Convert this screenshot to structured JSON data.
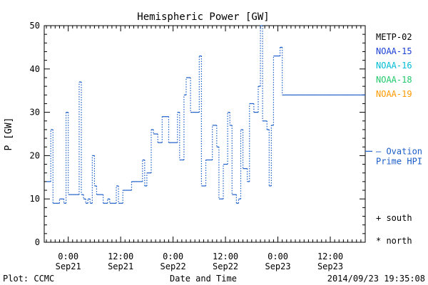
{
  "chart_data": {
    "type": "line",
    "title": "Hemispheric Power [GW]",
    "xlabel": "Date and Time",
    "ylabel": "P [GW]",
    "ylim": [
      0,
      50
    ],
    "yticks": [
      0,
      10,
      20,
      30,
      40,
      50
    ],
    "xticks": [
      {
        "time": "0:00",
        "date": "Sep21"
      },
      {
        "time": "12:00",
        "date": "Sep21"
      },
      {
        "time": "0:00",
        "date": "Sep22"
      },
      {
        "time": "12:00",
        "date": "Sep22"
      },
      {
        "time": "0:00",
        "date": "Sep23"
      },
      {
        "time": "12:00",
        "date": "Sep23"
      }
    ],
    "grid": false,
    "legend_position": "right",
    "legend": [
      {
        "name": "METP-02",
        "color": "#000000"
      },
      {
        "name": "NOAA-15",
        "color": "#1a3fd6"
      },
      {
        "name": "NOAA-16",
        "color": "#00bcd4"
      },
      {
        "name": "NOAA-18",
        "color": "#22c96a"
      },
      {
        "name": "NOAA-19",
        "color": "#ff9900"
      }
    ],
    "ovation_label": [
      "— Ovation",
      "Prime HPI"
    ],
    "ovation_color": "#1a5cc8",
    "marker_legend": [
      "+ south",
      "* north"
    ],
    "series": [
      {
        "name": "Ovation Prime HPI",
        "color": "#1a5cc8",
        "x_hours_from_sep21_0000": [
          -5,
          -4,
          -3.5,
          -3,
          -2,
          -1,
          -0.5,
          0,
          0.5,
          1,
          1.5,
          2,
          2.5,
          3,
          3.5,
          4,
          4.5,
          5,
          5.5,
          6,
          6.5,
          7,
          7.5,
          8,
          8.5,
          9,
          9.5,
          10,
          10.5,
          11,
          11.5,
          12,
          12.5,
          13,
          13.5,
          14,
          14.5,
          15,
          15.5,
          16,
          16.5,
          17,
          17.5,
          18,
          18.5,
          19,
          19.5,
          20,
          20.5,
          21,
          21.5,
          22,
          22.5,
          23,
          23.5,
          24,
          24.5,
          25,
          25.5,
          26,
          26.5,
          27,
          27.5,
          28,
          28.5,
          29,
          29.5,
          30,
          30.5,
          31,
          31.5,
          32,
          32.5,
          33,
          33.5,
          34,
          34.5,
          35,
          35.5,
          36,
          36.5,
          37,
          37.5,
          38,
          38.5,
          39,
          39.5,
          40,
          40.5,
          41,
          41.5,
          42,
          42.5,
          43,
          43.5,
          44,
          44.5,
          45,
          45.5,
          46,
          46.5,
          47,
          47.5,
          48,
          48.5,
          49,
          49.5,
          50,
          50.5,
          51,
          51.5,
          52,
          52.5,
          53,
          53.5,
          54,
          54.5,
          55,
          55.5,
          56,
          56.5,
          57,
          57.5,
          58,
          58.5,
          59,
          59.5,
          60,
          60.5,
          61,
          61.5,
          62,
          62.5,
          63,
          63.5,
          64,
          64.5,
          65,
          65.5,
          66,
          66.5,
          67,
          67.5
        ],
        "y": [
          14,
          26,
          9,
          9,
          10,
          9,
          30,
          11,
          11,
          11,
          11,
          11,
          37,
          11,
          10,
          9,
          10,
          9,
          20,
          13,
          11,
          11,
          11,
          9,
          9,
          10,
          9,
          9,
          9,
          13,
          9,
          9,
          12,
          12,
          12,
          12,
          14,
          14,
          14,
          14,
          14,
          19,
          13,
          16,
          16,
          26,
          25,
          25,
          23,
          23,
          29,
          29,
          29,
          23,
          23,
          23,
          23,
          30,
          19,
          19,
          34,
          38,
          38,
          30,
          30,
          30,
          30,
          43,
          13,
          13,
          19,
          19,
          19,
          27,
          27,
          22,
          10,
          10,
          18,
          18,
          30,
          27,
          11,
          11,
          9,
          10,
          26,
          17,
          17,
          14,
          32,
          32,
          30,
          30,
          36,
          50,
          28,
          28,
          26,
          13,
          27,
          43,
          43,
          43,
          45,
          34,
          34,
          34,
          34,
          34,
          34,
          34,
          34,
          34,
          34,
          34,
          34,
          34,
          34,
          34,
          34,
          34,
          34,
          34,
          34,
          34,
          34,
          34,
          34,
          34,
          34,
          34,
          34,
          34,
          34,
          34,
          34,
          34,
          34,
          34,
          34,
          34,
          34,
          34,
          34,
          34,
          34
        ]
      }
    ]
  },
  "footer": {
    "plot_credit": "Plot: CCMC",
    "timestamp": "2014/09/23 19:35:08"
  }
}
